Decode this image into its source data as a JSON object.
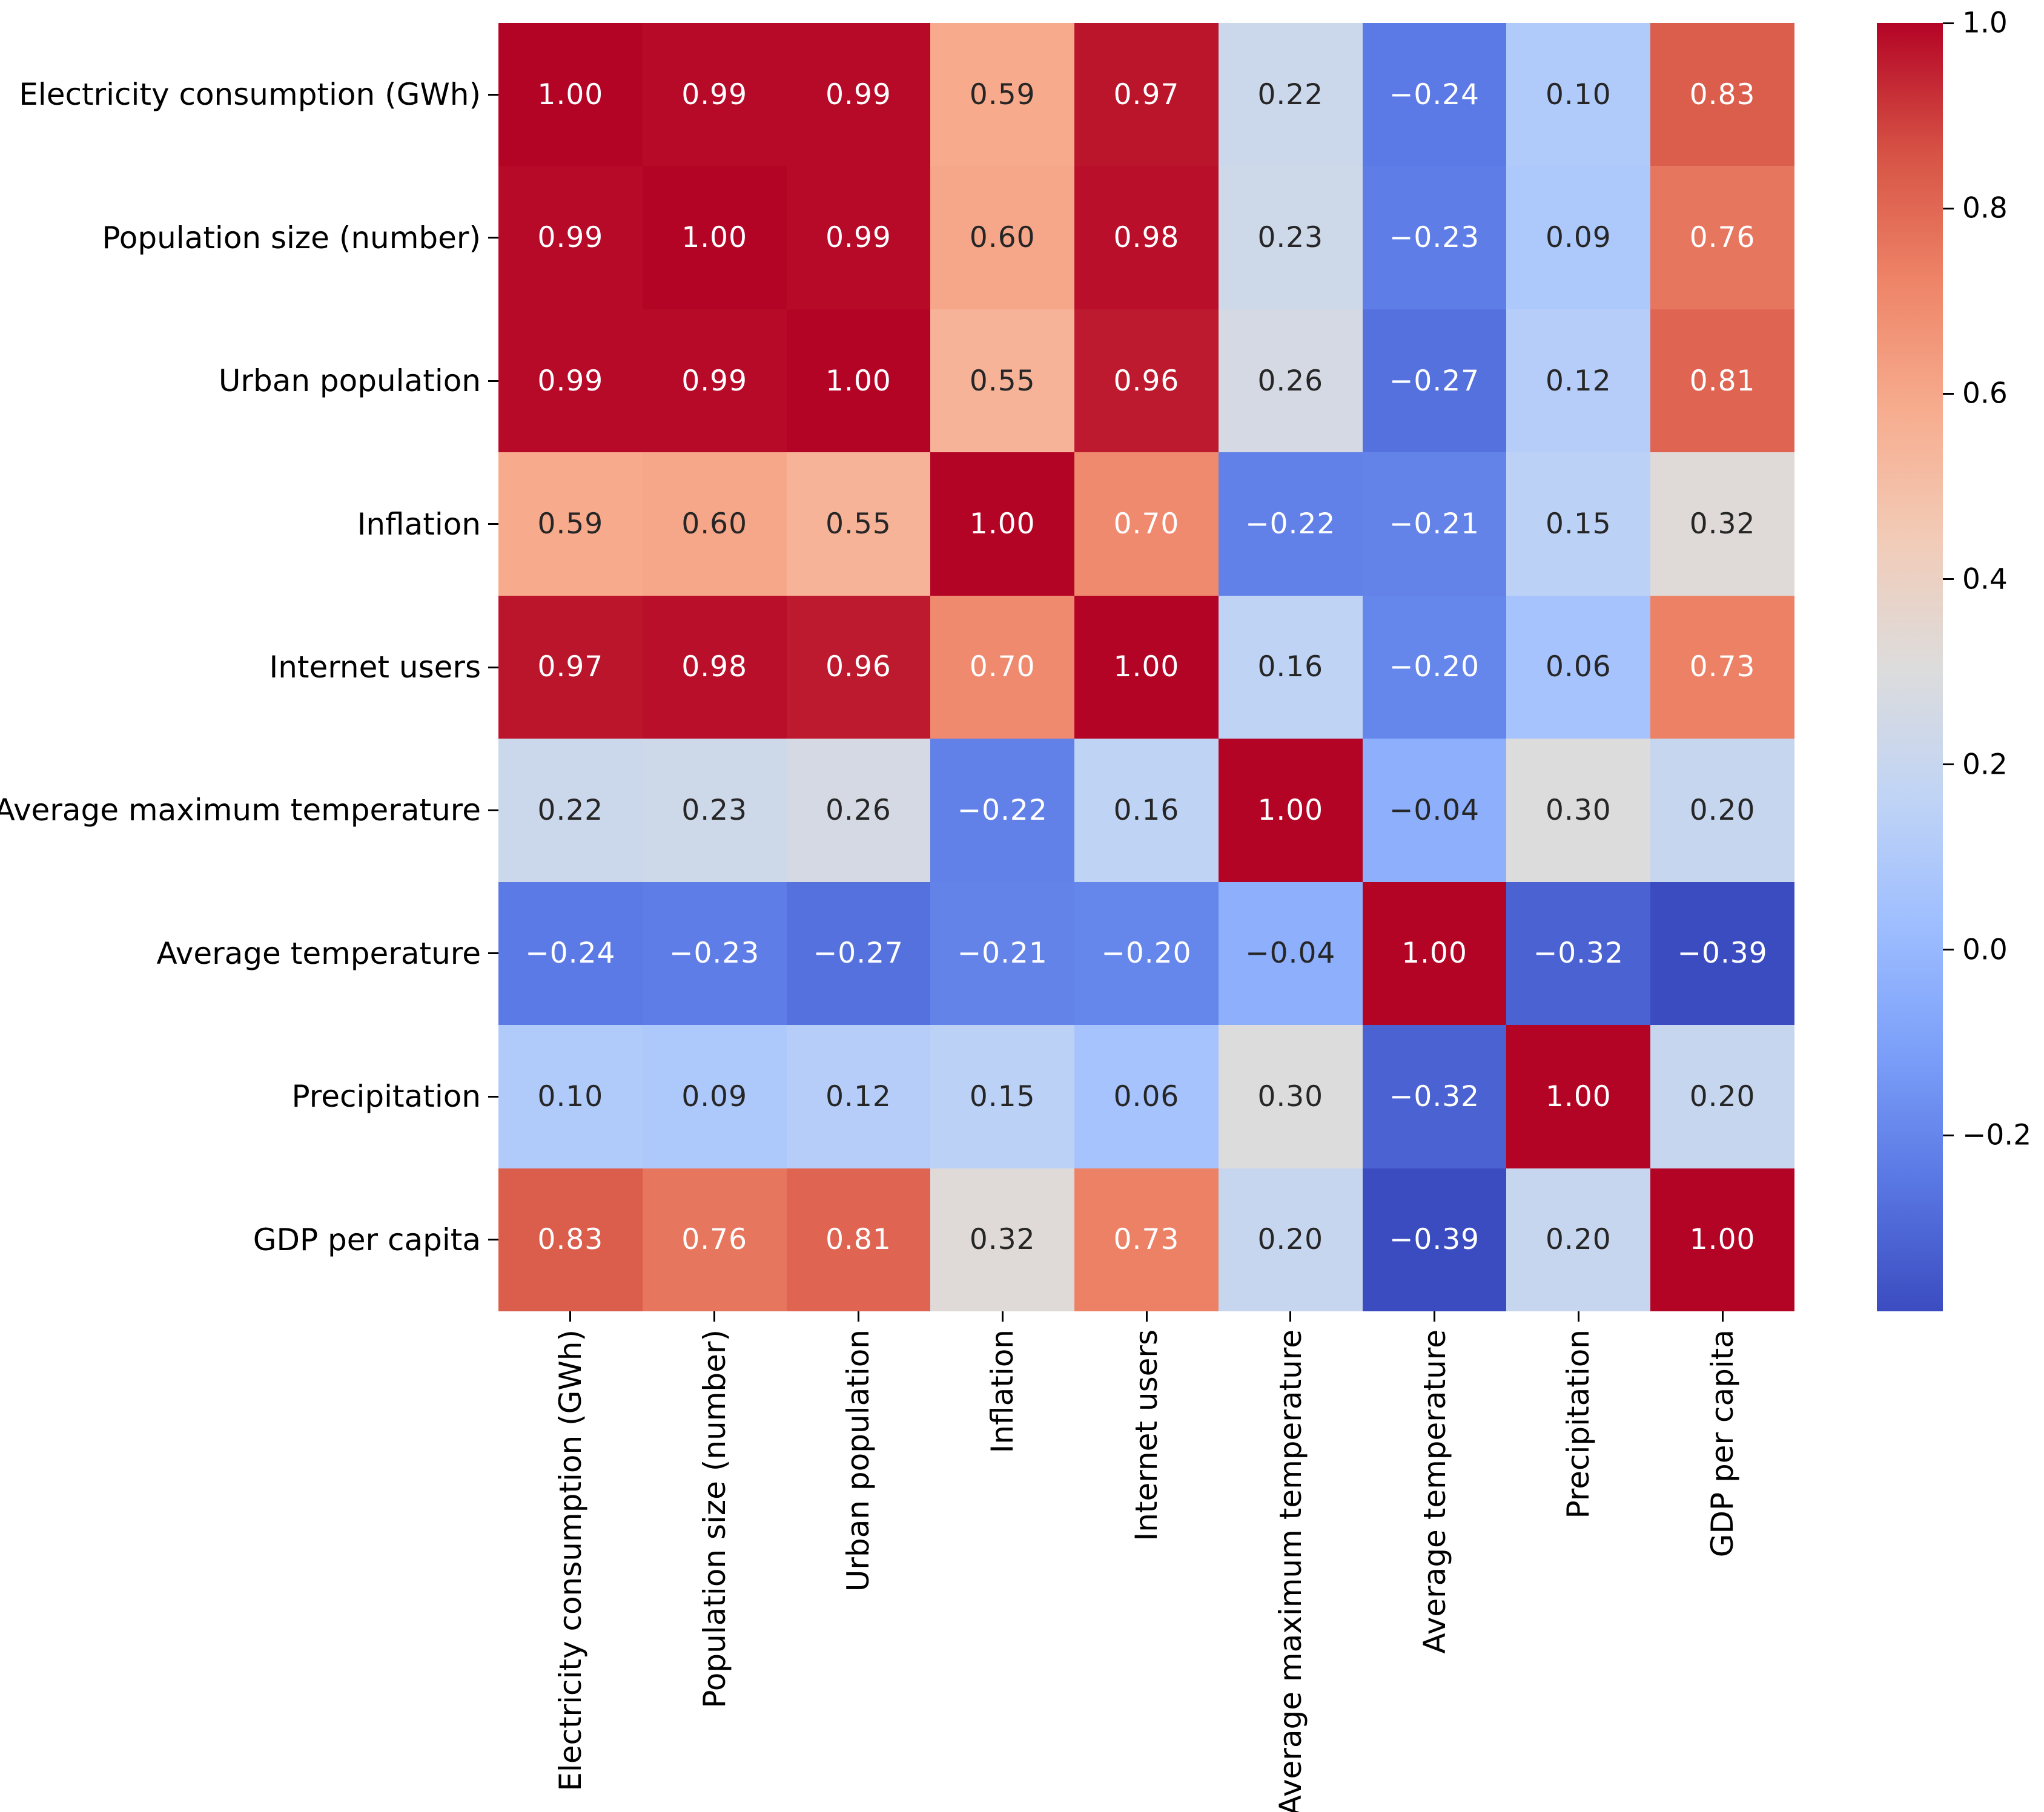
{
  "chart_data": {
    "type": "heatmap",
    "title": "",
    "variables": [
      "Electricity consumption (GWh)",
      "Population size (number)",
      "Urban population",
      "Inflation",
      "Internet users",
      "Average maximum temperature",
      "Average temperature",
      "Precipitation",
      "GDP per capita"
    ],
    "matrix": [
      [
        1.0,
        0.99,
        0.99,
        0.59,
        0.97,
        0.22,
        -0.24,
        0.1,
        0.83
      ],
      [
        0.99,
        1.0,
        0.99,
        0.6,
        0.98,
        0.23,
        -0.23,
        0.09,
        0.76
      ],
      [
        0.99,
        0.99,
        1.0,
        0.55,
        0.96,
        0.26,
        -0.27,
        0.12,
        0.81
      ],
      [
        0.59,
        0.6,
        0.55,
        1.0,
        0.7,
        -0.22,
        -0.21,
        0.15,
        0.32
      ],
      [
        0.97,
        0.98,
        0.96,
        0.7,
        1.0,
        0.16,
        -0.2,
        0.06,
        0.73
      ],
      [
        0.22,
        0.23,
        0.26,
        -0.22,
        0.16,
        1.0,
        -0.04,
        0.3,
        0.2
      ],
      [
        -0.24,
        -0.23,
        -0.27,
        -0.21,
        -0.2,
        -0.04,
        1.0,
        -0.32,
        -0.39
      ],
      [
        0.1,
        0.09,
        0.12,
        0.15,
        0.06,
        0.3,
        -0.32,
        1.0,
        0.2
      ],
      [
        0.83,
        0.76,
        0.81,
        0.32,
        0.73,
        0.2,
        -0.39,
        0.2,
        1.0
      ]
    ],
    "annotation_decimals": 2,
    "vmin": -0.39,
    "vmax": 1.0,
    "colormap": {
      "name": "coolwarm",
      "anchors": [
        "#3b4cc0",
        "#5977e3",
        "#7b9ff9",
        "#9ebeff",
        "#c0d4f5",
        "#dddcdc",
        "#f2cbb7",
        "#f7ac8e",
        "#ee8468",
        "#d65244",
        "#b40426"
      ]
    },
    "colorbar": {
      "position": "right",
      "tick_values": [
        1.0,
        0.8,
        0.6,
        0.4,
        0.2,
        0.0,
        -0.2
      ],
      "tick_labels": [
        "1.0",
        "0.8",
        "0.6",
        "0.4",
        "0.2",
        "0.0",
        "−0.2"
      ]
    },
    "annotation_text_colors": {
      "light": "#ffffff",
      "dark": "#262626"
    },
    "axis": {
      "x_label_rotation_deg": 90,
      "tick_color": "#000000",
      "label_color": "#000000"
    },
    "grid": false,
    "legend": false
  }
}
